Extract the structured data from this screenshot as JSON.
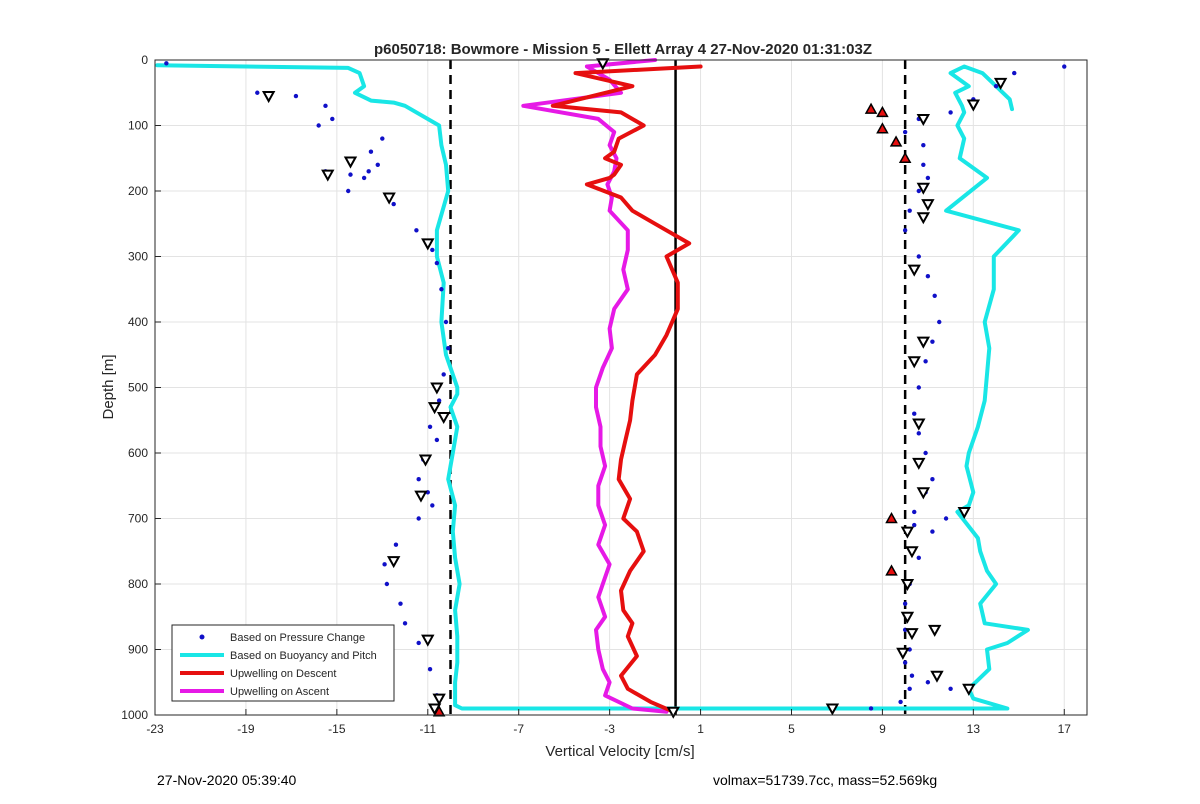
{
  "chart_data": {
    "type": "line",
    "title": "p6050718: Bowmore - Mission 5 - Ellett Array 4 27-Nov-2020 01:31:03Z",
    "xlabel": "Vertical Velocity [cm/s]",
    "ylabel": "Depth [m]",
    "xlim": [
      -23,
      18
    ],
    "ylim": [
      0,
      1000
    ],
    "y_reversed": true,
    "xticks": [
      -23,
      -19,
      -15,
      -11,
      -7,
      -3,
      1,
      5,
      9,
      13,
      17
    ],
    "yticks": [
      0,
      100,
      200,
      300,
      400,
      500,
      600,
      700,
      800,
      900,
      1000
    ],
    "grid": true,
    "legend_position": "bottom-left",
    "reference_lines": [
      {
        "x": -10,
        "style": "dashed",
        "color": "#000000"
      },
      {
        "x": 10,
        "style": "dashed",
        "color": "#000000"
      },
      {
        "x": -0.1,
        "style": "solid",
        "color": "#000000"
      }
    ],
    "series": [
      {
        "name": "Based on Pressure Change",
        "style": "points",
        "color": "#1010c8",
        "x": [
          -22.5,
          -18.5,
          -16.8,
          -15.5,
          -15.2,
          -15.8,
          -13,
          -13.5,
          -13.2,
          -13.6,
          -13.8,
          -14.4,
          -15.5,
          -14.5,
          -12.5,
          -11.5,
          -10.8,
          -10.6,
          -10.4,
          -10.2,
          -10.1,
          -10.3,
          -10.5,
          -10.9,
          -10.6,
          -11.2,
          -11.4,
          -11.0,
          -10.8,
          -11.4,
          -12.4,
          -12.9,
          -12.8,
          -12.2,
          -12.0,
          -11.4,
          -10.9,
          -10.6,
          -10.6
        ],
        "y": [
          5,
          50,
          55,
          70,
          90,
          100,
          120,
          140,
          160,
          170,
          180,
          175,
          170,
          200,
          220,
          260,
          290,
          310,
          350,
          400,
          440,
          480,
          520,
          560,
          580,
          610,
          640,
          660,
          680,
          700,
          740,
          770,
          800,
          830,
          860,
          890,
          930,
          970,
          995
        ]
      },
      {
        "name": "Based on Pressure Change (ascent)",
        "style": "points",
        "color": "#1010c8",
        "x": [
          17,
          14.8,
          14,
          13,
          12,
          10.6,
          10.0,
          10.8,
          10.8,
          11.0,
          10.6,
          10.2,
          10.0,
          10.6,
          11.0,
          11.3,
          11.5,
          11.2,
          10.9,
          10.6,
          10.4,
          10.6,
          10.9,
          11.2,
          10.9,
          10.4,
          10.4,
          11.2,
          11.8,
          10.6,
          10.2,
          10.0,
          10.0,
          10.2,
          10.0,
          10.3,
          10.2,
          9.8,
          11.0,
          12.0,
          8.5
        ],
        "y": [
          10,
          20,
          40,
          60,
          80,
          90,
          110,
          130,
          160,
          180,
          200,
          230,
          260,
          300,
          330,
          360,
          400,
          430,
          460,
          500,
          540,
          570,
          600,
          640,
          660,
          690,
          710,
          720,
          700,
          760,
          800,
          830,
          870,
          900,
          920,
          940,
          960,
          980,
          950,
          960,
          990
        ]
      },
      {
        "name": "Based on Buoyancy and Pitch",
        "style": "line",
        "color": "#19e6e6",
        "x": [
          -22.9,
          -14.5,
          -14.0,
          -13.8,
          -14.2,
          -13.5,
          -12.5,
          -12.0,
          -10.5,
          -10.4,
          -10.2,
          -10.1,
          -10.6,
          -10.6,
          -10.3,
          -10.4,
          -10.2,
          -9.7,
          -9.7,
          -10.0,
          -9.7,
          -9.9,
          -10.1,
          -9.8,
          -9.9,
          -9.8,
          -9.6,
          -9.8,
          -9.7,
          -9.7,
          -9.8,
          -9.8,
          -9.8,
          -9.5,
          14.5,
          13.0,
          12.8,
          13.7,
          13.6,
          14.5,
          15.4,
          13.5,
          13.3,
          14.0,
          13.6,
          13.3,
          13.2,
          12.3,
          12.8,
          13.0,
          12.7,
          12.8,
          13.2,
          13.5,
          13.6,
          13.7,
          13.5,
          13.9,
          13.9,
          15.0,
          11.8,
          13.6,
          12.4,
          12.6,
          12.3,
          12.6,
          12.5,
          12.2,
          12.8,
          12.0,
          12.6,
          12.6,
          13.4,
          14.0,
          14.6,
          14.7
        ],
        "y": [
          8,
          12,
          20,
          40,
          50,
          62,
          65,
          70,
          100,
          130,
          160,
          200,
          260,
          300,
          340,
          400,
          450,
          500,
          510,
          530,
          560,
          600,
          640,
          680,
          720,
          760,
          800,
          840,
          880,
          920,
          950,
          975,
          985,
          990,
          990,
          975,
          960,
          930,
          900,
          890,
          870,
          860,
          830,
          800,
          780,
          750,
          730,
          690,
          680,
          660,
          620,
          600,
          560,
          520,
          480,
          440,
          400,
          350,
          300,
          260,
          230,
          180,
          150,
          120,
          100,
          80,
          70,
          50,
          40,
          20,
          10,
          10,
          20,
          40,
          60,
          75
        ]
      },
      {
        "name": "Upwelling on Descent",
        "style": "line",
        "color": "#e60f0f",
        "x": [
          1.0,
          -4.5,
          -2.0,
          -5.5,
          -2.5,
          -1.5,
          -2.6,
          -2.8,
          -3.2,
          -2.5,
          -2.8,
          -3.0,
          -4.0,
          -2.5,
          -2.0,
          -1.0,
          0.5,
          -0.5,
          0.0,
          0.0,
          -0.5,
          -1.0,
          -1.8,
          -2.0,
          -2.1,
          -2.3,
          -2.5,
          -2.6,
          -2.1,
          -2.4,
          -1.8,
          -1.5,
          -2.1,
          -2.5,
          -2.4,
          -2.0,
          -2.2,
          -1.8,
          -2.5,
          -2.2,
          -1.2,
          -0.2
        ],
        "y": [
          10,
          20,
          40,
          70,
          80,
          100,
          120,
          140,
          150,
          160,
          175,
          180,
          190,
          210,
          230,
          250,
          280,
          300,
          340,
          380,
          420,
          450,
          480,
          520,
          550,
          580,
          610,
          640,
          670,
          700,
          720,
          750,
          780,
          810,
          840,
          860,
          880,
          910,
          940,
          960,
          980,
          995
        ]
      },
      {
        "name": "Upwelling on Ascent",
        "style": "line",
        "color": "#e619e6",
        "x": [
          -1.0,
          -4.0,
          -3.0,
          -2.5,
          -6.8,
          -3.5,
          -2.8,
          -3.0,
          -2.7,
          -2.8,
          -3.1,
          -2.9,
          -3.0,
          -2.2,
          -2.2,
          -2.4,
          -2.2,
          -2.8,
          -3.0,
          -2.9,
          -3.3,
          -3.6,
          -3.6,
          -3.4,
          -3.4,
          -3.2,
          -3.5,
          -3.5,
          -3.2,
          -3.5,
          -3.0,
          -3.3,
          -3.5,
          -3.2,
          -3.6,
          -3.5,
          -3.3,
          -3.0,
          -3.2,
          -2.0,
          -0.5
        ],
        "y": [
          0,
          10,
          30,
          50,
          70,
          90,
          110,
          130,
          150,
          170,
          190,
          210,
          230,
          260,
          290,
          320,
          350,
          380,
          410,
          440,
          470,
          500,
          530,
          560,
          590,
          620,
          650,
          680,
          710,
          740,
          770,
          800,
          820,
          850,
          870,
          900,
          930,
          950,
          970,
          990,
          995
        ]
      }
    ],
    "markers": {
      "down_triangles": {
        "color": "#000000",
        "x": [
          -18.0,
          -14.4,
          -15.4,
          -12.7,
          -11.0,
          -10.6,
          -10.7,
          -10.3,
          -11.1,
          -11.3,
          -12.5,
          -11.0,
          -10.5,
          -10.7,
          -3.3,
          14.2,
          13.0,
          10.8,
          10.8,
          11.0,
          10.8,
          10.4,
          10.8,
          10.4,
          10.6,
          10.6,
          10.8,
          12.6,
          10.1,
          10.3,
          10.1,
          10.1,
          10.3,
          11.3,
          9.9,
          11.4,
          12.8,
          6.8,
          -0.2
        ],
        "y": [
          55,
          155,
          175,
          210,
          280,
          500,
          530,
          545,
          610,
          665,
          765,
          885,
          975,
          990,
          5,
          35,
          68,
          90,
          195,
          220,
          240,
          320,
          430,
          460,
          555,
          615,
          660,
          690,
          720,
          750,
          800,
          850,
          875,
          870,
          905,
          940,
          960,
          990,
          995
        ]
      },
      "up_triangles": {
        "color": "#e60f0f",
        "x": [
          8.5,
          9.0,
          9.0,
          9.6,
          10.0,
          9.4,
          9.4,
          -10.5
        ],
        "y": [
          75,
          80,
          105,
          125,
          150,
          700,
          780,
          995
        ]
      }
    }
  },
  "legend": [
    {
      "label": "Based on Pressure Change",
      "kind": "dot",
      "color": "#1010c8"
    },
    {
      "label": "Based on Buoyancy and Pitch",
      "kind": "line",
      "color": "#19e6e6"
    },
    {
      "label": "Upwelling on Descent",
      "kind": "line",
      "color": "#e60f0f"
    },
    {
      "label": "Upwelling on Ascent",
      "kind": "line",
      "color": "#e619e6"
    }
  ],
  "footer": {
    "left": "27-Nov-2020 05:39:40",
    "right": "volmax=51739.7cc, mass=52.569kg"
  }
}
